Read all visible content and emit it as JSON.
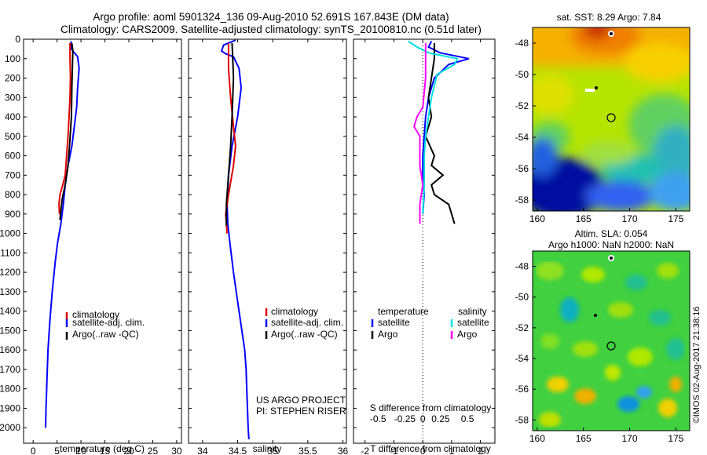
{
  "header": {
    "line1": "Argo profile: aoml 5901324_136 09-Aug-2010 52.691S 167.843E (DM data)",
    "line2": "Climatology: CARS2009. Satellite-adjusted climatology: synTS_20100810.nc (0.51d later)"
  },
  "colors": {
    "climatology": "#e00000",
    "satellite": "#0000ff",
    "argo": "#000000",
    "sat_salinity": "#00e0e0",
    "argo_salinity": "#ff00ff"
  },
  "chart_data": [
    {
      "type": "line",
      "name": "temperature-profile",
      "xlabel": "temperature (deg C)",
      "ylabel": "",
      "xlim": [
        -2,
        31
      ],
      "ylim": [
        2080,
        0
      ],
      "xticks": [
        0,
        5,
        10,
        15,
        20,
        25,
        30
      ],
      "yticks": [
        0,
        100,
        200,
        300,
        400,
        500,
        600,
        700,
        800,
        900,
        1000,
        1100,
        1200,
        1300,
        1400,
        1500,
        1600,
        1700,
        1800,
        1900,
        2000
      ],
      "legend": [
        "climatology",
        "satellite-adj. clim.",
        "Argo(..raw -QC)"
      ],
      "legend_position": "lower-right",
      "series": [
        {
          "name": "satellite-adj. clim.",
          "color": "#0000ff",
          "x": [
            7.9,
            8.0,
            8.6,
            9.3,
            9.6,
            9.3,
            9.1,
            8.6,
            8.1,
            7.3,
            6.7,
            6.3,
            5.8,
            5.1,
            4.6,
            4.0,
            3.5,
            3.1,
            2.9,
            2.7,
            2.6
          ],
          "y": [
            10,
            50,
            70,
            90,
            150,
            250,
            350,
            450,
            550,
            650,
            750,
            850,
            950,
            1050,
            1150,
            1300,
            1450,
            1600,
            1750,
            1900,
            2000
          ]
        },
        {
          "name": "climatology",
          "color": "#e00000",
          "x": [
            7.7,
            7.7,
            7.8,
            7.7,
            7.5,
            7.3,
            7.0,
            6.7,
            6.2,
            5.6,
            5.4,
            5.5
          ],
          "y": [
            20,
            100,
            200,
            300,
            400,
            500,
            600,
            700,
            750,
            800,
            850,
            900
          ]
        },
        {
          "name": "Argo(..raw -QC)",
          "color": "#000000",
          "x": [
            8.1,
            8.3,
            8.2,
            8.1,
            8.0,
            7.6,
            7.3,
            6.7,
            6.1,
            5.8,
            5.6
          ],
          "y": [
            20,
            60,
            150,
            250,
            400,
            550,
            650,
            750,
            820,
            880,
            930
          ]
        }
      ]
    },
    {
      "type": "line",
      "name": "salinity-profile",
      "xlabel": "salinity",
      "ylabel": "",
      "xlim": [
        33.8,
        36.05
      ],
      "ylim": [
        2080,
        0
      ],
      "xticks": [
        34,
        34.5,
        35,
        35.5,
        36
      ],
      "xticklabels": [
        "34",
        "34.5",
        "35",
        "35.5",
        "36"
      ],
      "legend": [
        "climatology",
        "satellite-adj. clim.",
        "Argo(..raw -QC)"
      ],
      "legend_position": "lower-right",
      "annotation": [
        "US ARGO PROJECT",
        "PI: STEPHEN RISER"
      ],
      "series": [
        {
          "name": "satellite-adj. clim.",
          "color": "#0000ff",
          "x": [
            34.47,
            34.3,
            34.27,
            34.33,
            34.44,
            34.52,
            34.55,
            34.5,
            34.42,
            34.37,
            34.35,
            34.36,
            34.39,
            34.44,
            34.5,
            34.56,
            34.6,
            34.62,
            34.63,
            34.64,
            34.65,
            34.66
          ],
          "y": [
            5,
            30,
            60,
            75,
            90,
            150,
            250,
            400,
            550,
            700,
            850,
            950,
            1050,
            1200,
            1350,
            1500,
            1600,
            1700,
            1800,
            1900,
            2000,
            2060
          ]
        },
        {
          "name": "climatology",
          "color": "#e00000",
          "x": [
            34.37,
            34.37,
            34.4,
            34.44,
            34.47,
            34.44,
            34.37,
            34.33,
            34.35
          ],
          "y": [
            20,
            150,
            300,
            450,
            550,
            650,
            800,
            900,
            1000
          ]
        },
        {
          "name": "Argo(..raw -QC)",
          "color": "#000000",
          "x": [
            34.42,
            34.43,
            34.44,
            34.43,
            34.42,
            34.4,
            34.38,
            34.36,
            34.34,
            34.34
          ],
          "y": [
            20,
            100,
            200,
            300,
            400,
            550,
            650,
            750,
            850,
            960
          ]
        }
      ]
    },
    {
      "type": "line",
      "name": "difference-profile",
      "xlabel": "T difference from climatology",
      "xlabel_top": "S difference from climatology",
      "xlim": [
        -2.4,
        2.5
      ],
      "xticks": [
        -2,
        -1,
        0,
        1,
        2
      ],
      "top_xticklabels": [
        "-0.5",
        "-0.25",
        "0",
        "0.25",
        "0.5"
      ],
      "legend_headers": [
        "temperature",
        "salinity"
      ],
      "legend": [
        "satellite",
        "Argo",
        "satellite",
        "Argo"
      ],
      "series": [
        {
          "name": "satellite",
          "quantity": "temperature",
          "color": "#0000ff",
          "x": [
            0.3,
            0.2,
            0.6,
            1.6,
            0.9,
            0.4,
            0.2,
            0.1,
            0.05,
            0.0,
            0.0,
            0.05,
            0.0
          ],
          "y": [
            10,
            40,
            70,
            100,
            130,
            200,
            300,
            400,
            500,
            600,
            700,
            800,
            900
          ]
        },
        {
          "name": "Argo",
          "quantity": "temperature",
          "color": "#000000",
          "x": [
            0.4,
            0.4,
            0.3,
            0.2,
            0.3,
            0.1,
            0.4,
            0.3,
            0.7,
            0.3,
            0.4,
            0.9,
            1.1
          ],
          "y": [
            20,
            100,
            200,
            300,
            400,
            500,
            600,
            650,
            700,
            750,
            800,
            850,
            950
          ]
        },
        {
          "name": "satellite",
          "quantity": "salinity",
          "color": "#00e0e0",
          "x": [
            -0.5,
            -0.2,
            0.2,
            1.2,
            1.1,
            0.5,
            0.3,
            0.2,
            0.1,
            0.05,
            0.05,
            0.0
          ],
          "y": [
            10,
            40,
            70,
            100,
            130,
            180,
            300,
            400,
            500,
            600,
            750,
            900
          ]
        },
        {
          "name": "Argo",
          "quantity": "salinity",
          "color": "#ff00ff",
          "x": [
            0.1,
            0.1,
            0.0,
            -0.2,
            -0.3,
            -0.1,
            -0.1,
            -0.1,
            0.0,
            -0.1,
            -0.1
          ],
          "y": [
            20,
            200,
            350,
            400,
            450,
            500,
            550,
            650,
            750,
            850,
            950
          ]
        }
      ]
    }
  ],
  "map_top": {
    "title": "sat. SST: 8.29 Argo: 7.84",
    "xticks": [
      "160",
      "165",
      "170",
      "175"
    ],
    "yticks": [
      "-48",
      "-50",
      "-52",
      "-54",
      "-56",
      "-58"
    ]
  },
  "map_bottom": {
    "title_line1": "Altim. SLA: 0.054",
    "title_line2": "Argo h1000: NaN h2000: NaN",
    "xticks": [
      "160",
      "165",
      "170",
      "175"
    ],
    "yticks": [
      "-48",
      "-50",
      "-52",
      "-54",
      "-56",
      "-58"
    ]
  },
  "credit": "©IMOS 02-Aug-2017 21:38:16"
}
